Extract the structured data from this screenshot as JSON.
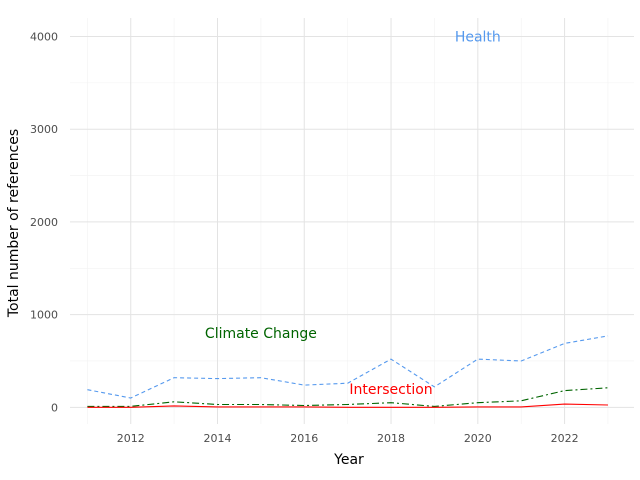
{
  "chart_data": {
    "type": "line",
    "title": "",
    "xlabel": "Year",
    "ylabel": "Total number of references",
    "xlim": [
      2010.6,
      2023.6
    ],
    "ylim": [
      -180,
      4200
    ],
    "x_ticks": [
      2012,
      2014,
      2016,
      2018,
      2020,
      2022
    ],
    "y_ticks": [
      0,
      1000,
      2000,
      3000,
      4000
    ],
    "x_minor_ticks": [
      2011,
      2013,
      2015,
      2017,
      2019,
      2021,
      2023
    ],
    "y_minor_ticks": [
      500,
      1500,
      2500,
      3500
    ],
    "grid": true,
    "legend": "none",
    "x": [
      2011,
      2012,
      2013,
      2014,
      2015,
      2016,
      2017,
      2018,
      2019,
      2020,
      2021,
      2022,
      2023
    ],
    "series": [
      {
        "name": "Health",
        "color": "#5599ee",
        "dash": "dashed",
        "values": [
          190,
          100,
          320,
          310,
          320,
          240,
          260,
          520,
          220,
          520,
          500,
          690,
          770
        ],
        "label": {
          "text": "Health",
          "x": 2020,
          "y": 4000
        }
      },
      {
        "name": "Climate Change",
        "color": "#006400",
        "dash": "dashdot",
        "values": [
          10,
          10,
          60,
          30,
          30,
          20,
          30,
          50,
          10,
          50,
          70,
          180,
          210
        ],
        "label": {
          "text": "Climate Change",
          "x": 2015,
          "y": 800
        }
      },
      {
        "name": "Intersection",
        "color": "#ff0000",
        "dash": "solid",
        "values": [
          0,
          0,
          15,
          5,
          5,
          5,
          0,
          0,
          0,
          5,
          5,
          35,
          25
        ],
        "label": {
          "text": "Intersection",
          "x": 2018,
          "y": 200
        }
      }
    ]
  }
}
